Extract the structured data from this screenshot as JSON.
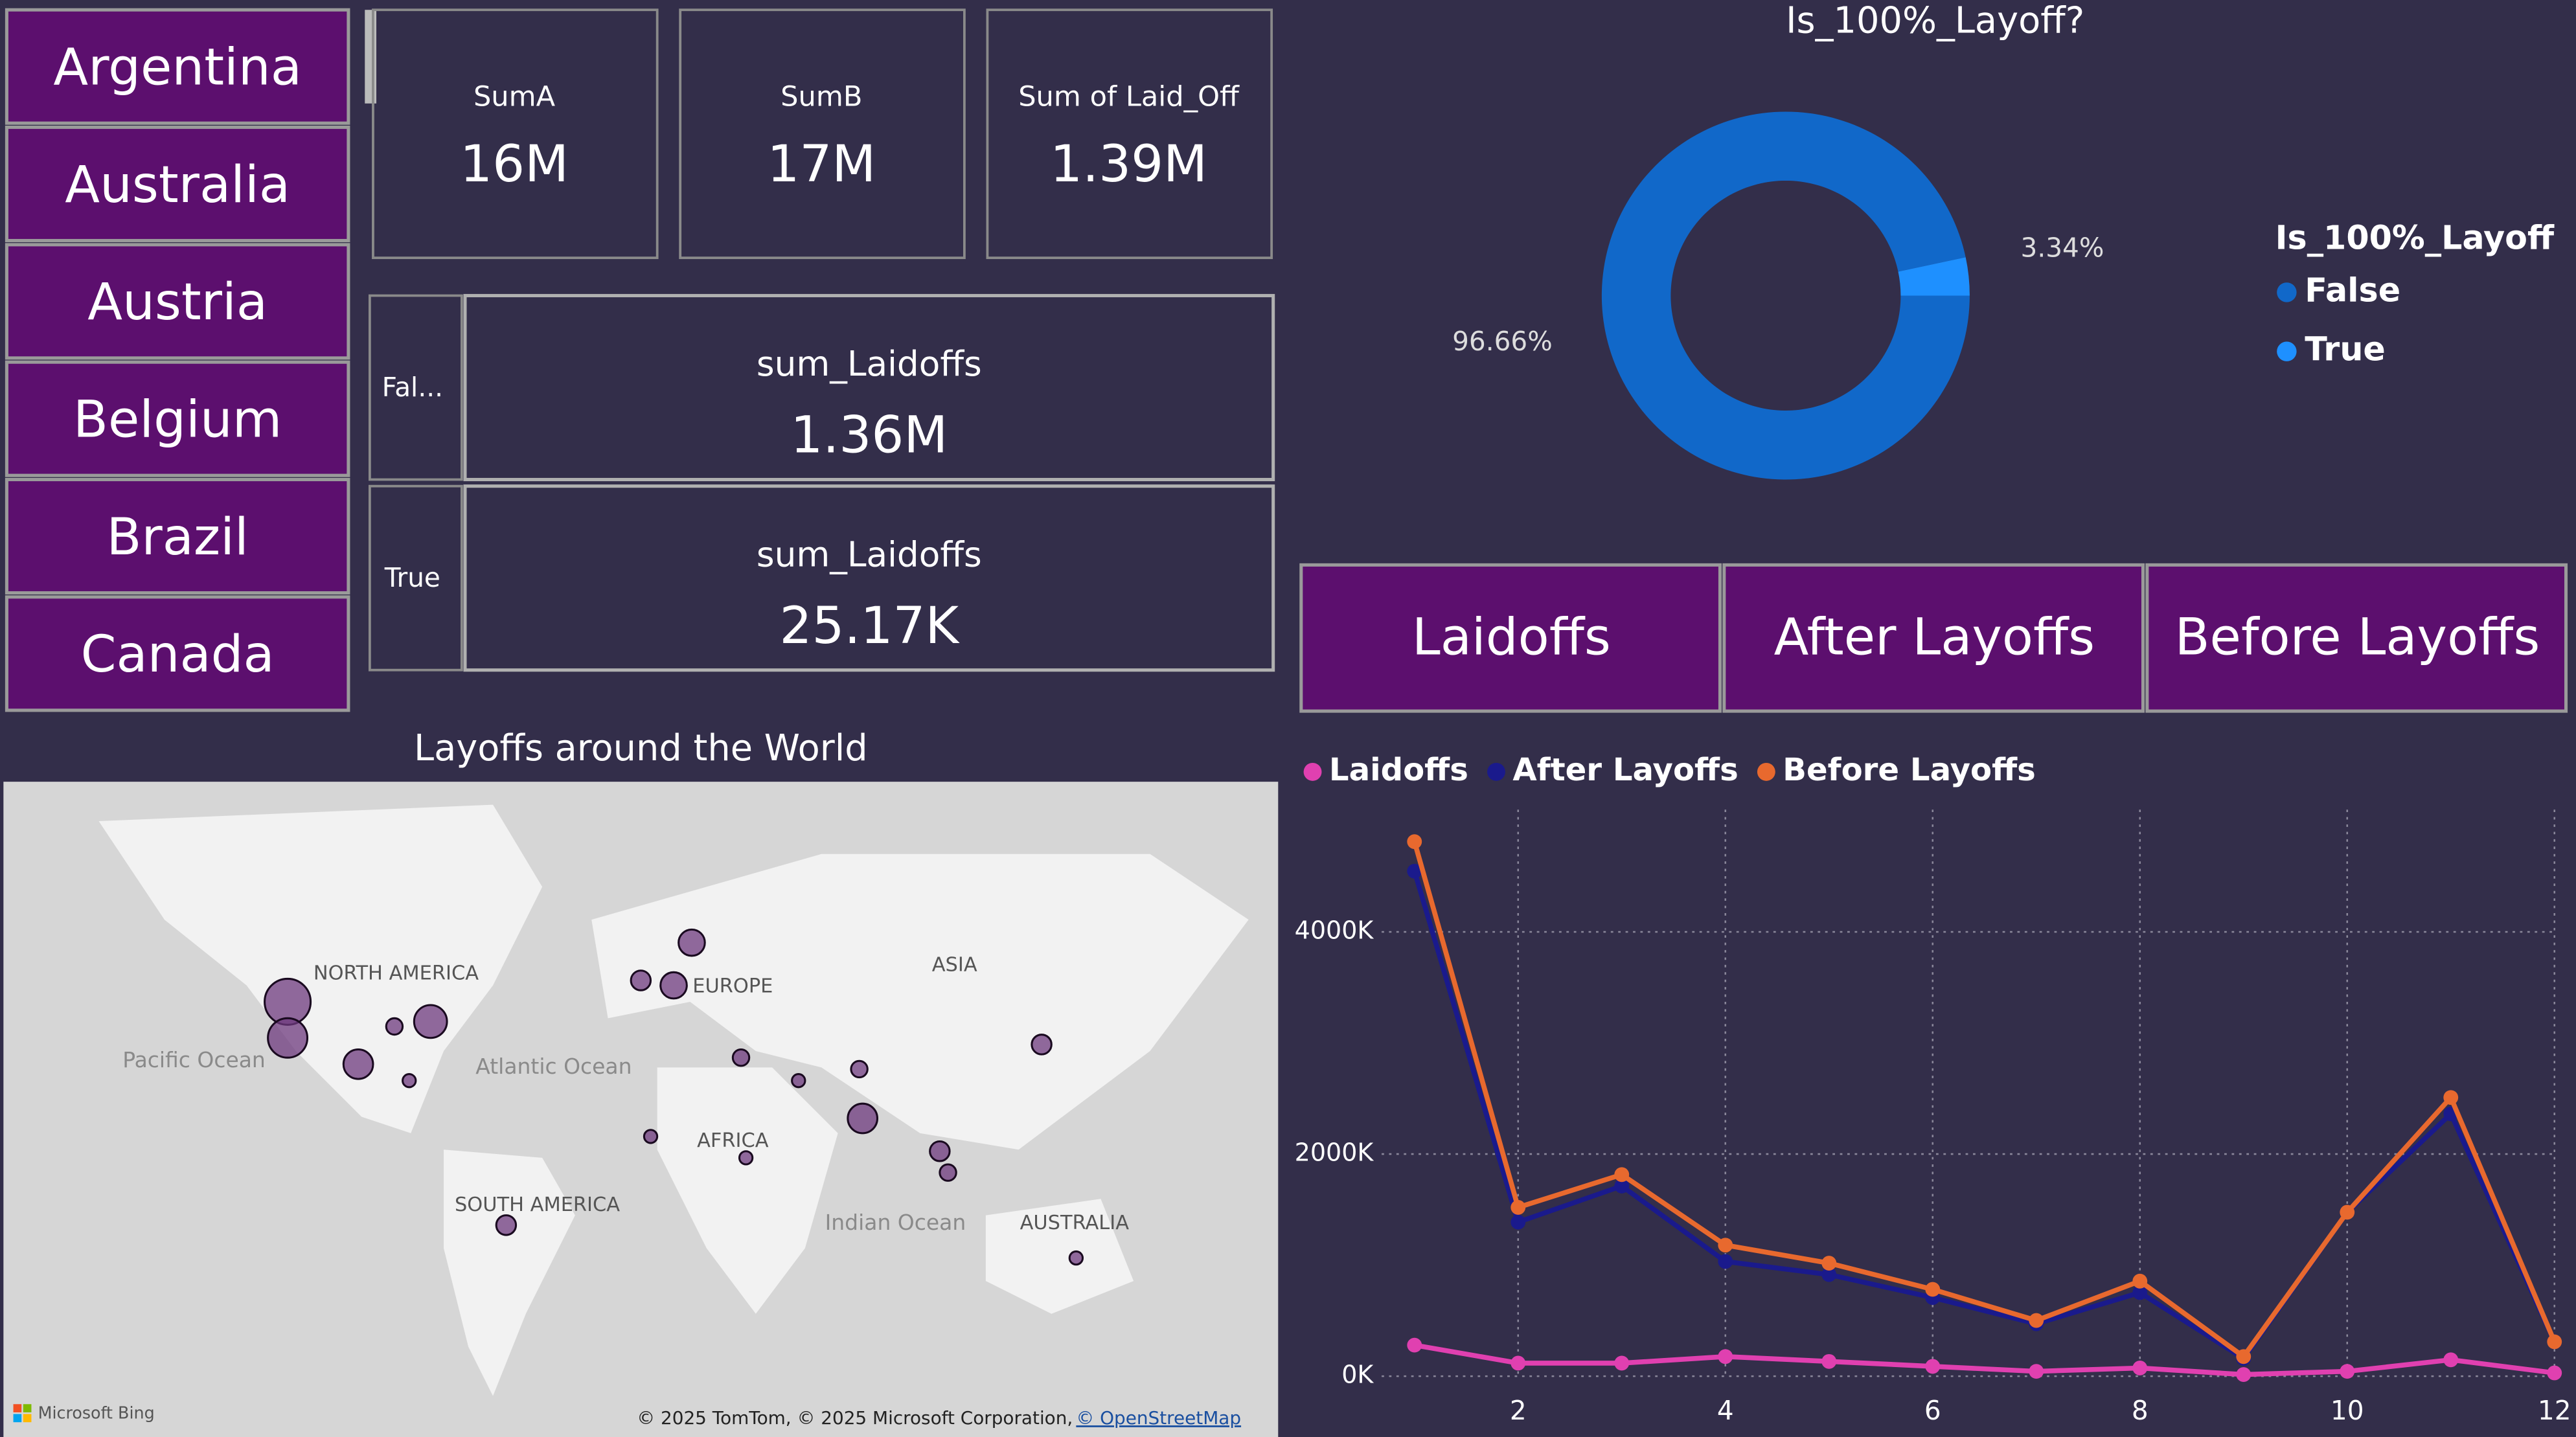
{
  "slicer": {
    "items": [
      "Argentina",
      "Australia",
      "Austria",
      "Belgium",
      "Brazil",
      "Canada"
    ]
  },
  "cards": [
    {
      "label": "SumA",
      "value": "16M"
    },
    {
      "label": "SumB",
      "value": "17M"
    },
    {
      "label": "Sum of Laid_Off",
      "value": "1.39M"
    }
  ],
  "matrix": {
    "rows": [
      {
        "category": "Fal...",
        "label": "sum_Laidoffs",
        "value": "1.36M"
      },
      {
        "category": "True",
        "label": "sum_Laidoffs",
        "value": "25.17K"
      }
    ]
  },
  "donut": {
    "type": "pie",
    "title": "Is_100%_Layoff?",
    "legend_title": "Is_100%_Layoff",
    "categories": [
      "False",
      "True"
    ],
    "values": [
      96.66,
      3.34
    ],
    "value_labels": [
      "96.66%",
      "3.34%"
    ],
    "colors": [
      "#1168c9",
      "#1e90ff"
    ]
  },
  "buttons": [
    "Laidoffs",
    "After Layoffs",
    "Before Layoffs"
  ],
  "map": {
    "title": "Layoffs around the World",
    "labels": [
      "NORTH AMERICA",
      "Pacific Ocean",
      "Atlantic Ocean",
      "EUROPE",
      "ASIA",
      "AFRICA",
      "SOUTH AMERICA",
      "Indian Ocean",
      "AUSTRALIA"
    ],
    "brand": "Microsoft Bing",
    "attribution": "© 2025 TomTom, © 2025 Microsoft Corporation,",
    "attribution_link": "© OpenStreetMap"
  },
  "line": {
    "type": "line",
    "x": [
      1,
      2,
      3,
      4,
      5,
      6,
      7,
      8,
      9,
      10,
      11,
      12
    ],
    "series": [
      {
        "name": "Laidoffs",
        "color": "#e040b0",
        "values": [
          280000,
          118000,
          118000,
          177000,
          133000,
          89000,
          44000,
          74000,
          15000,
          44000,
          148000,
          30000
        ]
      },
      {
        "name": "After Layoffs",
        "color": "#1a1a8c",
        "values": [
          4546000,
          1387000,
          1712000,
          1033000,
          915000,
          708000,
          472000,
          753000,
          160000,
          1476000,
          2362000,
          310000
        ]
      },
      {
        "name": "Before Layoffs",
        "color": "#e8692e",
        "values": [
          4812000,
          1520000,
          1815000,
          1180000,
          1018000,
          782000,
          502000,
          856000,
          177000,
          1476000,
          2509000,
          310000
        ]
      }
    ],
    "xlim": [
      1,
      12
    ],
    "xticks": [
      2,
      4,
      6,
      8,
      10,
      12
    ],
    "ylim": [
      0,
      5100000
    ],
    "yticks": [
      {
        "value": 0,
        "label": "0K"
      },
      {
        "value": 2000000,
        "label": "2000K"
      },
      {
        "value": 4000000,
        "label": "4000K"
      }
    ],
    "grid": true
  }
}
